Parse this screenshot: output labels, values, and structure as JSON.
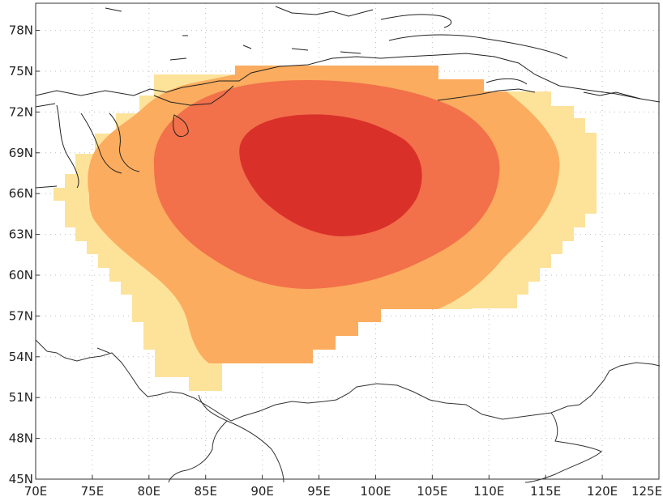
{
  "map": {
    "lon_range": [
      70,
      125
    ],
    "lat_range": [
      45,
      80
    ],
    "lon_ticks": [
      "70E",
      "75E",
      "80E",
      "85E",
      "90E",
      "95E",
      "100E",
      "105E",
      "110E",
      "115E",
      "120E",
      "125E"
    ],
    "lat_ticks": [
      "45N",
      "48N",
      "51N",
      "54N",
      "57N",
      "60N",
      "63N",
      "66N",
      "69N",
      "72N",
      "75N",
      "78N"
    ],
    "grid": "dotted",
    "contour_levels": [
      "level-1",
      "level-2",
      "level-3",
      "level-4"
    ],
    "fill_colors": {
      "level-1": "#fde29a",
      "level-2": "#fbac5e",
      "level-3": "#f2704a",
      "level-4": "#d9302a"
    },
    "line_color": "#222222"
  }
}
